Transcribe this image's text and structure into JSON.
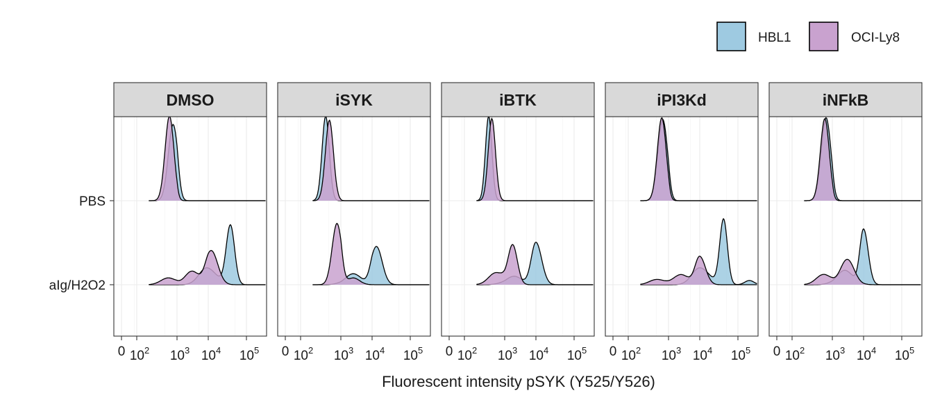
{
  "chart_data": {
    "type": "ridgeline-density",
    "xlabel": "Fluorescent intensity pSYK (Y525/Y526)",
    "ylabel": "",
    "x_scale": "biexponential",
    "x_ticks": [
      "0",
      "10^2",
      "10^3",
      "10^4",
      "10^5"
    ],
    "x_tick_values": [
      0,
      100,
      1000,
      10000,
      100000
    ],
    "y_categories": [
      "PBS",
      "aIg/H2O2"
    ],
    "panels": [
      "DMSO",
      "iSYK",
      "iBTK",
      "iPI3Kd",
      "iNFkB"
    ],
    "grid": true,
    "legend_position": "top-right",
    "legend": [
      {
        "name": "HBL1",
        "color": "#9ecae1"
      },
      {
        "name": "OCI-Ly8",
        "color": "#c9a2cf"
      }
    ],
    "series": [
      {
        "panel": "DMSO",
        "row": "PBS",
        "name": "HBL1",
        "peaks": [
          {
            "x": 800,
            "h": 0.9,
            "w": 0.12
          }
        ]
      },
      {
        "panel": "DMSO",
        "row": "PBS",
        "name": "OCI-Ly8",
        "peaks": [
          {
            "x": 650,
            "h": 1.0,
            "w": 0.11
          }
        ]
      },
      {
        "panel": "DMSO",
        "row": "aIg/H2O2",
        "name": "HBL1",
        "peaks": [
          {
            "x": 38000,
            "h": 0.7,
            "w": 0.11
          },
          {
            "x": 9000,
            "h": 0.2,
            "w": 0.25
          }
        ]
      },
      {
        "panel": "DMSO",
        "row": "aIg/H2O2",
        "name": "OCI-Ly8",
        "peaks": [
          {
            "x": 12000,
            "h": 0.4,
            "w": 0.17
          },
          {
            "x": 3000,
            "h": 0.16,
            "w": 0.22
          },
          {
            "x": 600,
            "h": 0.08,
            "w": 0.18
          }
        ]
      },
      {
        "panel": "iSYK",
        "row": "PBS",
        "name": "HBL1",
        "peaks": [
          {
            "x": 420,
            "h": 1.0,
            "w": 0.09
          }
        ]
      },
      {
        "panel": "iSYK",
        "row": "PBS",
        "name": "OCI-Ly8",
        "peaks": [
          {
            "x": 520,
            "h": 0.95,
            "w": 0.1
          }
        ]
      },
      {
        "panel": "iSYK",
        "row": "aIg/H2O2",
        "name": "HBL1",
        "peaks": [
          {
            "x": 13000,
            "h": 0.45,
            "w": 0.15
          },
          {
            "x": 2500,
            "h": 0.13,
            "w": 0.25
          }
        ]
      },
      {
        "panel": "iSYK",
        "row": "aIg/H2O2",
        "name": "OCI-Ly8",
        "peaks": [
          {
            "x": 800,
            "h": 0.72,
            "w": 0.12
          },
          {
            "x": 2500,
            "h": 0.08,
            "w": 0.2
          }
        ]
      },
      {
        "panel": "iBTK",
        "row": "PBS",
        "name": "HBL1",
        "peaks": [
          {
            "x": 400,
            "h": 1.0,
            "w": 0.08
          }
        ]
      },
      {
        "panel": "iBTK",
        "row": "PBS",
        "name": "OCI-Ly8",
        "peaks": [
          {
            "x": 480,
            "h": 0.97,
            "w": 0.09
          }
        ]
      },
      {
        "panel": "iBTK",
        "row": "aIg/H2O2",
        "name": "HBL1",
        "peaks": [
          {
            "x": 10000,
            "h": 0.5,
            "w": 0.15
          },
          {
            "x": 2000,
            "h": 0.1,
            "w": 0.25
          }
        ]
      },
      {
        "panel": "iBTK",
        "row": "aIg/H2O2",
        "name": "OCI-Ly8",
        "peaks": [
          {
            "x": 1800,
            "h": 0.47,
            "w": 0.15
          },
          {
            "x": 600,
            "h": 0.14,
            "w": 0.18
          }
        ]
      },
      {
        "panel": "iPI3Kd",
        "row": "PBS",
        "name": "HBL1",
        "peaks": [
          {
            "x": 720,
            "h": 0.96,
            "w": 0.12
          }
        ]
      },
      {
        "panel": "iPI3Kd",
        "row": "PBS",
        "name": "OCI-Ly8",
        "peaks": [
          {
            "x": 680,
            "h": 0.98,
            "w": 0.11
          }
        ]
      },
      {
        "panel": "iPI3Kd",
        "row": "aIg/H2O2",
        "name": "HBL1",
        "peaks": [
          {
            "x": 42000,
            "h": 0.77,
            "w": 0.1
          },
          {
            "x": 10000,
            "h": 0.2,
            "w": 0.25
          },
          {
            "x": 200000,
            "h": 0.05,
            "w": 0.12
          }
        ]
      },
      {
        "panel": "iPI3Kd",
        "row": "aIg/H2O2",
        "name": "OCI-Ly8",
        "peaks": [
          {
            "x": 10000,
            "h": 0.33,
            "w": 0.15
          },
          {
            "x": 2500,
            "h": 0.12,
            "w": 0.25
          },
          {
            "x": 500,
            "h": 0.06,
            "w": 0.18
          }
        ]
      },
      {
        "panel": "iNFkB",
        "row": "PBS",
        "name": "HBL1",
        "peaks": [
          {
            "x": 700,
            "h": 0.98,
            "w": 0.12
          }
        ]
      },
      {
        "panel": "iNFkB",
        "row": "PBS",
        "name": "OCI-Ly8",
        "peaks": [
          {
            "x": 650,
            "h": 0.97,
            "w": 0.11
          }
        ]
      },
      {
        "panel": "iNFkB",
        "row": "aIg/H2O2",
        "name": "HBL1",
        "peaks": [
          {
            "x": 10000,
            "h": 0.65,
            "w": 0.12
          },
          {
            "x": 2500,
            "h": 0.17,
            "w": 0.25
          }
        ]
      },
      {
        "panel": "iNFkB",
        "row": "aIg/H2O2",
        "name": "OCI-Ly8",
        "peaks": [
          {
            "x": 3000,
            "h": 0.3,
            "w": 0.22
          },
          {
            "x": 600,
            "h": 0.12,
            "w": 0.18
          }
        ]
      }
    ]
  }
}
